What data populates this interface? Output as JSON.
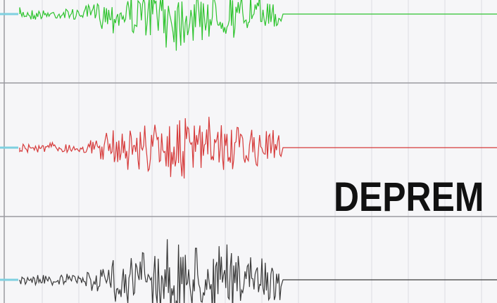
{
  "caption": "DEPREM",
  "traces": [
    {
      "name": "trace-1",
      "color": "#2fc42f"
    },
    {
      "name": "trace-2",
      "color": "#d63a3a"
    },
    {
      "name": "trace-3",
      "color": "#3a3a3a"
    }
  ],
  "colors": {
    "background": "#f6f6f8",
    "grid": "#dcdce2",
    "divider": "#9a9aa0",
    "marker": "#7fd0e0"
  }
}
